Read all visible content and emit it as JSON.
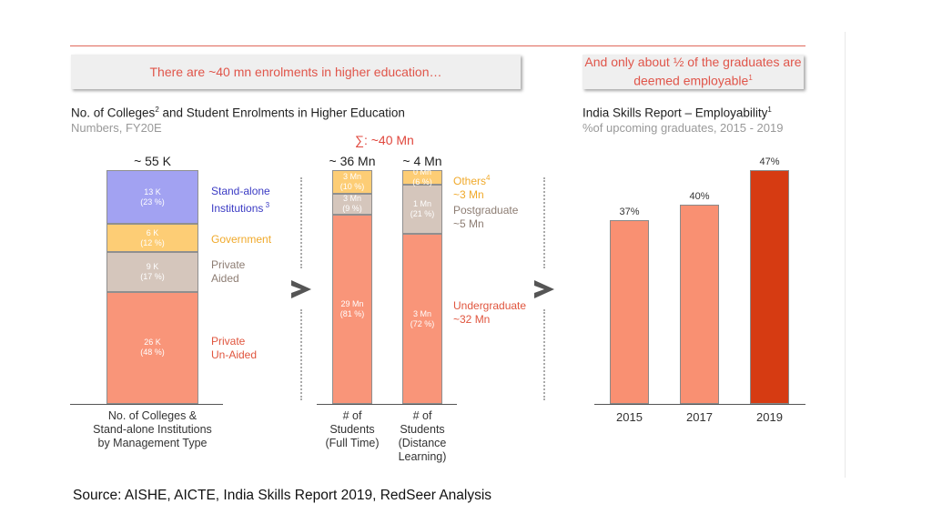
{
  "left_section": {
    "banner": "There are ~40 mn enrolments in higher education…",
    "title": "No. of  Colleges",
    "title_sup": "2",
    "title_rest": " and Student Enrolments in Higher Education",
    "subtitle": "Numbers, FY20E",
    "sigma_label": "∑: ~40 Mn"
  },
  "right_section": {
    "banner_line1": "And only about ½ of the graduates  are",
    "banner_line2": "deemed employable",
    "banner_sup": "1",
    "title": "India Skills Report – Employability",
    "title_sup": "1",
    "subtitle": "%of upcoming graduates, 2015 - 2019"
  },
  "colors": {
    "standalone": "#9e9ef2",
    "government": "#fdcb6e",
    "private_aided": "#d3c3b9",
    "private_unaided": "#f99072",
    "employ_light": "#f99072",
    "employ_dark": "#d63b12",
    "accent_red": "#e0554a"
  },
  "chart_data": [
    {
      "type": "bar",
      "stacked": true,
      "title": "No. of Colleges & Stand-alone Institutions by Management Type",
      "categories": [
        "No. of Colleges & Stand-alone Institutions by Management Type"
      ],
      "total_label": "~ 55 K",
      "segments": [
        {
          "name": "Private Un-Aided",
          "value_label": "26 K",
          "pct_label": "(48 %)",
          "value": 26,
          "pct": 48
        },
        {
          "name": "Private Aided",
          "value_label": "9 K",
          "pct_label": "(17 %)",
          "value": 9,
          "pct": 17
        },
        {
          "name": "Government",
          "value_label": "6 K",
          "pct_label": "(12 %)",
          "value": 6,
          "pct": 12
        },
        {
          "name": "Stand-alone Institutions",
          "value_label": "13 K",
          "pct_label": "(23 %)",
          "value": 13,
          "pct": 23
        }
      ],
      "legend": [
        {
          "line1": "Stand-alone",
          "line2": "Institutions",
          "sup": "3"
        },
        {
          "line1": "Government",
          "line2": ""
        },
        {
          "line1": "Private",
          "line2": "Aided"
        },
        {
          "line1": "Private",
          "line2": "Un-Aided"
        }
      ],
      "xlabel_lines": [
        "No. of Colleges &",
        "Stand-alone Institutions",
        "by Management Type"
      ]
    },
    {
      "type": "bar",
      "stacked": true,
      "title": "Student Enrolments",
      "categories": [
        "# of Students (Full Time)",
        "# of Students (Distance Learning)"
      ],
      "bars": [
        {
          "total_label": "~ 36 Mn",
          "xlabel_lines": [
            "# of",
            "Students",
            "(Full Time)"
          ],
          "segments": [
            {
              "name": "Undergraduate",
              "value_label": "29 Mn",
              "pct_label": "(81 %)",
              "pct": 81
            },
            {
              "name": "Postgraduate",
              "value_label": "3 Mn",
              "pct_label": "(9 %)",
              "pct": 9
            },
            {
              "name": "Others",
              "value_label": "3 Mn",
              "pct_label": "(10 %)",
              "pct": 10
            }
          ]
        },
        {
          "total_label": "~ 4 Mn",
          "xlabel_lines": [
            "# of",
            "Students",
            "(Distance",
            "Learning)"
          ],
          "segments": [
            {
              "name": "Undergraduate",
              "value_label": "3 Mn",
              "pct_label": "(72 %)",
              "pct": 72
            },
            {
              "name": "Postgraduate",
              "value_label": "1 Mn",
              "pct_label": "(21 %)",
              "pct": 21
            },
            {
              "name": "Others",
              "value_label": "0 Mn",
              "pct_label": "(6 %)",
              "pct": 6
            }
          ]
        }
      ],
      "legend": [
        {
          "line1": "Others",
          "sup": "4",
          "line2": "~3 Mn"
        },
        {
          "line1": "Postgraduate",
          "line2": "~5 Mn"
        },
        {
          "line1": "Undergraduate",
          "line2": "~32 Mn"
        }
      ]
    },
    {
      "type": "bar",
      "title": "India Skills Report – Employability",
      "categories": [
        "2015",
        "2017",
        "2019"
      ],
      "values": [
        37,
        40,
        47
      ],
      "value_labels": [
        "37%",
        "40%",
        "47%"
      ],
      "ylabel": "%of upcoming graduates",
      "ylim": [
        0,
        50
      ]
    }
  ],
  "source": "Source:  AISHE, AICTE, India Skills  Report 2019, RedSeer Analysis"
}
